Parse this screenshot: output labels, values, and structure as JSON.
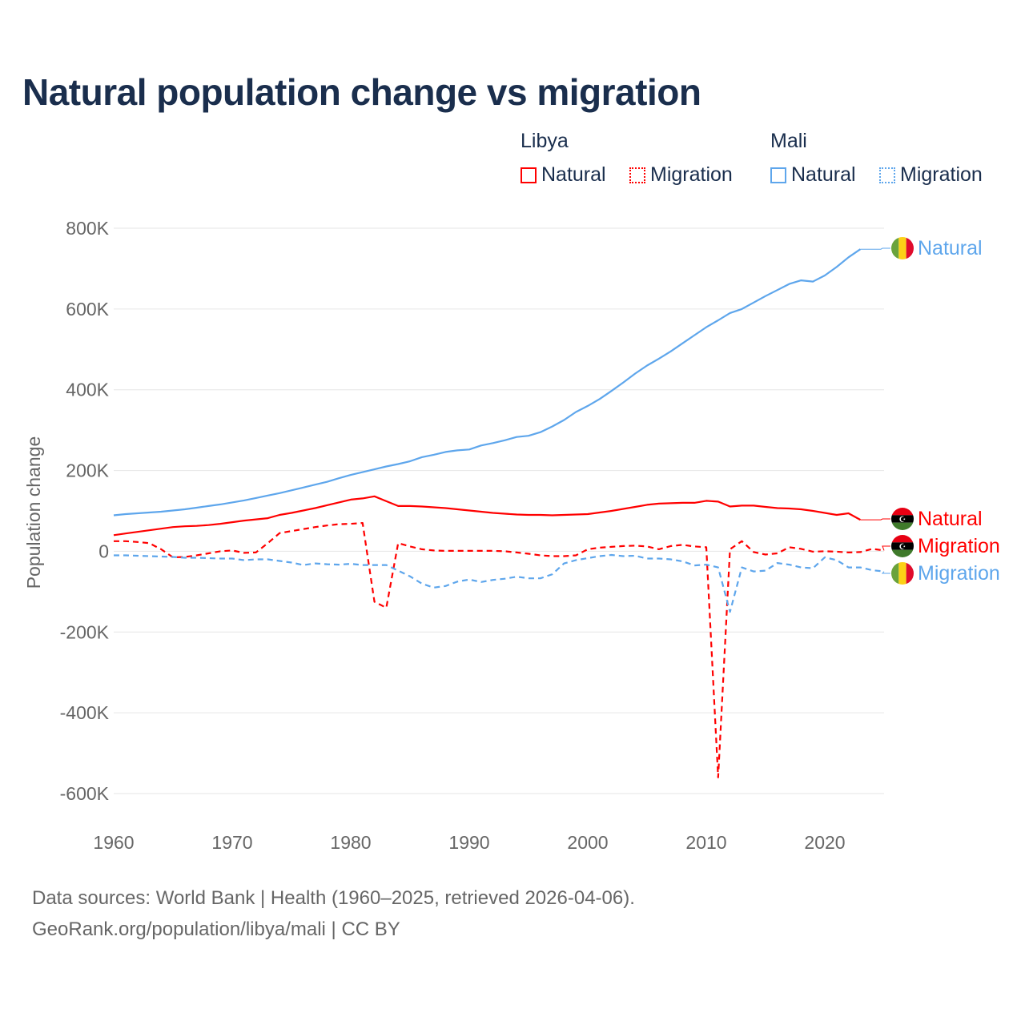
{
  "title": "Natural population change vs migration",
  "legend": {
    "libya": {
      "label": "Libya",
      "natural": "Natural",
      "migration": "Migration"
    },
    "mali": {
      "label": "Mali",
      "natural": "Natural",
      "migration": "Migration"
    }
  },
  "colors": {
    "libya": "#ff0000",
    "mali": "#5ea6ec",
    "title": "#1a2e4d",
    "grid": "#e6e6e6",
    "axis_text": "#666666"
  },
  "footer": {
    "line1": "Data sources: World Bank | Health (1960–2025, retrieved 2026-04-06).",
    "line2": "GeoRank.org/population/libya/mali | CC BY"
  },
  "chart_data": {
    "type": "line",
    "title": "Natural population change vs migration",
    "ylabel": "Population change",
    "xlabel": "",
    "xlim": [
      1960,
      2025
    ],
    "ylim": [
      -600000,
      800000
    ],
    "x_ticks": [
      1960,
      1970,
      1980,
      1990,
      2000,
      2010,
      2020
    ],
    "y_ticks": [
      {
        "v": 800000,
        "label": "800K"
      },
      {
        "v": 600000,
        "label": "600K"
      },
      {
        "v": 400000,
        "label": "400K"
      },
      {
        "v": 200000,
        "label": "200K"
      },
      {
        "v": 0,
        "label": "0"
      },
      {
        "v": -200000,
        "label": "-200K"
      },
      {
        "v": -400000,
        "label": "-400K"
      },
      {
        "v": -600000,
        "label": "-600K"
      }
    ],
    "grid": true,
    "series": [
      {
        "name": "Mali Natural",
        "country": "mali",
        "kind": "natural",
        "end_label": "Natural",
        "start": 1960,
        "values_k": [
          89,
          92,
          94,
          96,
          98,
          101,
          104,
          108,
          112,
          116,
          121,
          126,
          132,
          138,
          144,
          151,
          158,
          165,
          172,
          181,
          189,
          196,
          203,
          210,
          216,
          223,
          233,
          239,
          246,
          250,
          252,
          262,
          268,
          275,
          283,
          286,
          295,
          309,
          325,
          345,
          360,
          377,
          397,
          418,
          440,
          460,
          477,
          495,
          515,
          535,
          555,
          572,
          590,
          600,
          616,
          632,
          647,
          662,
          671,
          668,
          683,
          704,
          728,
          748
        ]
      },
      {
        "name": "Libya Natural",
        "country": "libya",
        "kind": "natural",
        "end_label": "Natural",
        "start": 1960,
        "values_k": [
          40,
          44,
          48,
          52,
          56,
          60,
          62,
          63,
          65,
          68,
          72,
          76,
          79,
          82,
          90,
          95,
          101,
          107,
          114,
          121,
          128,
          131,
          136,
          124,
          112,
          112,
          111,
          109,
          107,
          104,
          101,
          98,
          95,
          93,
          91,
          90,
          90,
          89,
          90,
          91,
          92,
          96,
          100,
          105,
          110,
          115,
          118,
          119,
          120,
          120,
          125,
          123,
          111,
          113,
          113,
          110,
          107,
          106,
          104,
          100,
          95,
          90,
          94,
          78
        ]
      },
      {
        "name": "Libya Migration",
        "country": "libya",
        "kind": "migration",
        "end_label": "Migration",
        "start": 1960,
        "values_k": [
          25,
          25,
          23,
          20,
          5,
          -15,
          -14,
          -10,
          -5,
          0,
          2,
          -4,
          -3,
          20,
          45,
          50,
          55,
          60,
          64,
          67,
          68,
          70,
          -125,
          -140,
          20,
          12,
          5,
          2,
          1,
          1,
          1,
          1,
          1,
          0,
          -3,
          -6,
          -10,
          -12,
          -12,
          -10,
          5,
          9,
          11,
          13,
          14,
          12,
          5,
          13,
          16,
          12,
          10,
          -560,
          5,
          25,
          -2,
          -8,
          -5,
          10,
          6,
          -1,
          0,
          -1,
          -3,
          -2,
          6,
          2
        ]
      },
      {
        "name": "Mali Migration",
        "country": "mali",
        "kind": "migration",
        "end_label": "Migration",
        "start": 1960,
        "values_k": [
          -10,
          -10,
          -11,
          -12,
          -13,
          -14,
          -16,
          -16,
          -17,
          -18,
          -18,
          -22,
          -20,
          -20,
          -24,
          -28,
          -34,
          -30,
          -32,
          -33,
          -31,
          -34,
          -34,
          -34,
          -48,
          -62,
          -80,
          -90,
          -86,
          -75,
          -70,
          -76,
          -71,
          -68,
          -63,
          -67,
          -67,
          -57,
          -30,
          -22,
          -17,
          -12,
          -9,
          -12,
          -11,
          -18,
          -18,
          -20,
          -25,
          -35,
          -33,
          -40,
          -150,
          -40,
          -50,
          -48,
          -29,
          -33,
          -40,
          -42,
          -15,
          -22,
          -40,
          -40,
          -47,
          -50
        ]
      }
    ]
  }
}
